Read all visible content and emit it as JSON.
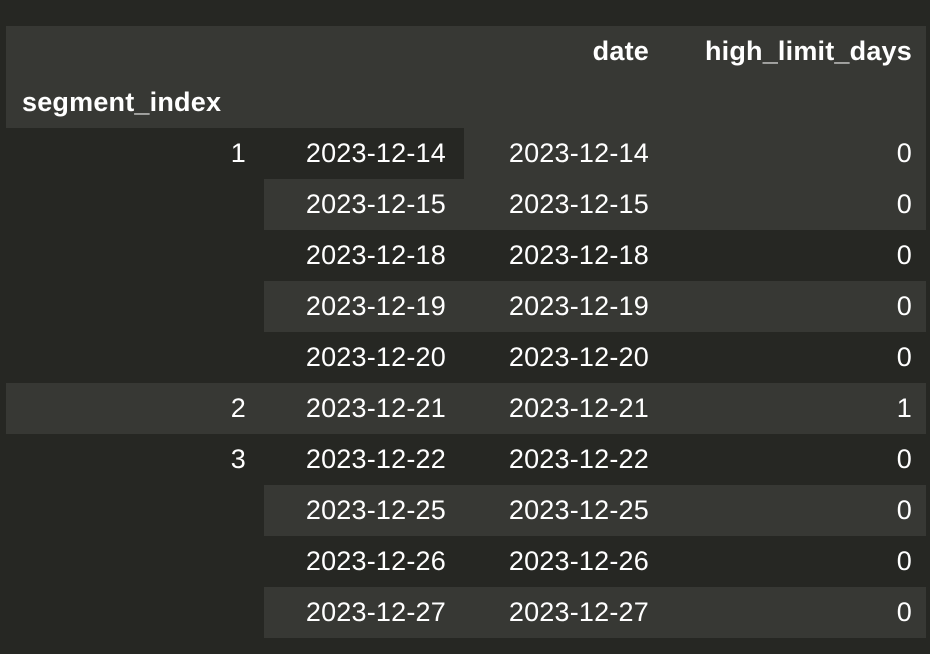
{
  "table": {
    "columns": {
      "date": "date",
      "high_limit_days": "high_limit_days"
    },
    "index_name": "segment_index",
    "rows": [
      {
        "segment": "1",
        "level": "2023-12-14",
        "date": "2023-12-14",
        "high_limit_days": "0"
      },
      {
        "segment": "",
        "level": "2023-12-15",
        "date": "2023-12-15",
        "high_limit_days": "0"
      },
      {
        "segment": "",
        "level": "2023-12-18",
        "date": "2023-12-18",
        "high_limit_days": "0"
      },
      {
        "segment": "",
        "level": "2023-12-19",
        "date": "2023-12-19",
        "high_limit_days": "0"
      },
      {
        "segment": "",
        "level": "2023-12-20",
        "date": "2023-12-20",
        "high_limit_days": "0"
      },
      {
        "segment": "2",
        "level": "2023-12-21",
        "date": "2023-12-21",
        "high_limit_days": "1"
      },
      {
        "segment": "3",
        "level": "2023-12-22",
        "date": "2023-12-22",
        "high_limit_days": "0"
      },
      {
        "segment": "",
        "level": "2023-12-25",
        "date": "2023-12-25",
        "high_limit_days": "0"
      },
      {
        "segment": "",
        "level": "2023-12-26",
        "date": "2023-12-26",
        "high_limit_days": "0"
      },
      {
        "segment": "",
        "level": "2023-12-27",
        "date": "2023-12-27",
        "high_limit_days": "0"
      }
    ]
  },
  "colors": {
    "background": "#262723",
    "stripe": "#373834",
    "text": "#ffffff"
  }
}
